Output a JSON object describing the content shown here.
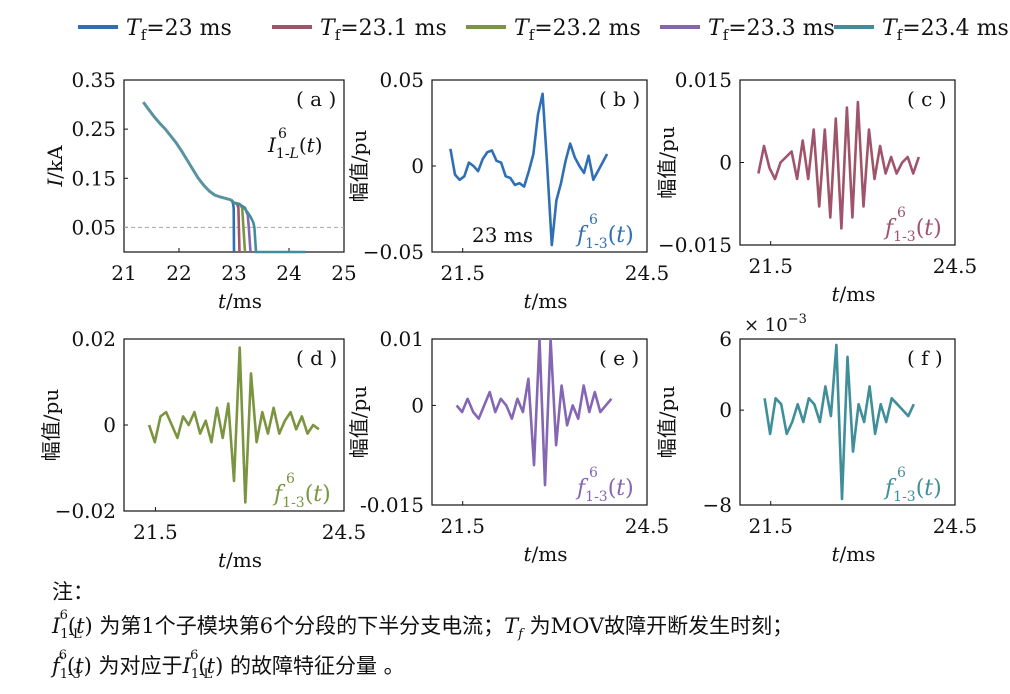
{
  "legend": [
    {
      "label": "Tf=23 ms",
      "color": "#2f6fb5"
    },
    {
      "label": "Tf=23.1 ms",
      "color": "#a0546b"
    },
    {
      "label": "Tf=23.2 ms",
      "color": "#7b9440"
    },
    {
      "label": "Tf=23.3 ms",
      "color": "#8466b3"
    },
    {
      "label": "Tf=23.4 ms",
      "color": "#3f8e99"
    }
  ],
  "chart_data": [
    {
      "id": "a",
      "type": "line",
      "panel_label": "( a )",
      "curve_label": "I^6_{1-L}(t)",
      "xlabel": "t/ms",
      "ylabel": "I/kA",
      "xlim": [
        21,
        25
      ],
      "ylim": [
        0,
        0.35
      ],
      "xticks": [
        21,
        22,
        23,
        24,
        25
      ],
      "xtick_labels": [
        "21",
        "22",
        "23",
        "24",
        "25"
      ],
      "yticks": [
        0.05,
        0.15,
        0.25,
        0.35
      ],
      "ytick_labels": [
        "0.05",
        "0.15",
        "0.25",
        "0.35"
      ],
      "reference_line": 0.05,
      "common_x": [
        21.35,
        21.45,
        21.55,
        21.65,
        21.75,
        21.85,
        21.95,
        22.05,
        22.15,
        22.25,
        22.35,
        22.45,
        22.55,
        22.65,
        22.75,
        22.85,
        22.95
      ],
      "common_y": [
        0.305,
        0.29,
        0.275,
        0.262,
        0.25,
        0.236,
        0.222,
        0.205,
        0.187,
        0.168,
        0.15,
        0.136,
        0.124,
        0.116,
        0.112,
        0.109,
        0.106
      ],
      "series": [
        {
          "tf": 23.0,
          "x": [
            22.98,
            22.995
          ],
          "y": [
            0.1,
            0.09
          ]
        },
        {
          "tf": 23.1,
          "x": [
            23.0,
            23.05,
            23.08,
            23.09
          ],
          "y": [
            0.1,
            0.099,
            0.09,
            0.05
          ]
        },
        {
          "tf": 23.2,
          "x": [
            23.0,
            23.1,
            23.15,
            23.17
          ],
          "y": [
            0.1,
            0.098,
            0.09,
            0.05
          ]
        },
        {
          "tf": 23.3,
          "x": [
            23.0,
            23.1,
            23.2,
            23.25,
            23.27
          ],
          "y": [
            0.1,
            0.097,
            0.09,
            0.075,
            0.05
          ]
        },
        {
          "tf": 23.4,
          "x": [
            23.0,
            23.1,
            23.2,
            23.3,
            23.35,
            23.37
          ],
          "y": [
            0.1,
            0.097,
            0.088,
            0.072,
            0.06,
            0.05
          ]
        }
      ]
    },
    {
      "id": "b",
      "type": "line",
      "panel_label": "( b )",
      "curve_label": "f^6_{1-3}(t)",
      "annotation": "23 ms",
      "xlabel": "t/ms",
      "ylabel": "幅值/pu",
      "xlim": [
        21.0,
        24.5
      ],
      "ylim": [
        -0.05,
        0.05
      ],
      "xticks": [
        21.5,
        24.5
      ],
      "xtick_labels": [
        "21.5",
        "24.5"
      ],
      "yticks": [
        -0.05,
        0,
        0.05
      ],
      "ytick_labels": [
        "−0.05",
        "0",
        "0.05"
      ],
      "x_start": 21.3,
      "x_step": 0.075,
      "values": [
        0.01,
        -0.005,
        -0.008,
        -0.006,
        0.002,
        0.0,
        -0.003,
        0.004,
        0.008,
        0.009,
        0.003,
        0.002,
        -0.006,
        -0.007,
        -0.011,
        -0.01,
        -0.012,
        -0.003,
        0.007,
        0.03,
        0.042,
        0.0,
        -0.046,
        -0.02,
        -0.01,
        0.003,
        0.013,
        0.005,
        0.0,
        -0.004,
        0.006,
        -0.008,
        -0.003,
        0.002,
        0.007
      ]
    },
    {
      "id": "c",
      "type": "line",
      "panel_label": "( c )",
      "curve_label": "f^6_{1-3}(t)",
      "xlabel": "t/ms",
      "ylabel": "幅值/pu",
      "xlim": [
        21.0,
        24.5
      ],
      "ylim": [
        -0.015,
        0.015
      ],
      "xticks": [
        21.5,
        24.5
      ],
      "xtick_labels": [
        "21.5",
        "24.5"
      ],
      "yticks": [
        -0.015,
        0,
        0.015
      ],
      "ytick_labels": [
        "−0.015",
        "0",
        "0.015"
      ],
      "x_start": 21.3,
      "x_step": 0.09,
      "values": [
        -0.002,
        0.003,
        -0.001,
        -0.003,
        0.0,
        0.001,
        0.002,
        -0.003,
        0.004,
        -0.003,
        0.006,
        -0.008,
        0.006,
        -0.01,
        0.008,
        -0.012,
        0.01,
        -0.01,
        0.011,
        -0.008,
        0.006,
        -0.003,
        0.003,
        -0.002,
        0.001,
        -0.002,
        0.0,
        0.001,
        -0.002,
        0.001
      ]
    },
    {
      "id": "d",
      "type": "line",
      "panel_label": "( d )",
      "curve_label": "f^6_{1-3}(t)",
      "xlabel": "t/ms",
      "ylabel": "幅值/pu",
      "xlim": [
        21.0,
        24.5
      ],
      "ylim": [
        -0.02,
        0.02
      ],
      "xticks": [
        21.5,
        24.5
      ],
      "xtick_labels": [
        "21.5",
        "24.5"
      ],
      "yticks": [
        -0.02,
        0,
        0.02
      ],
      "ytick_labels": [
        "−0.02",
        "0",
        "0.02"
      ],
      "x_start": 21.4,
      "x_step": 0.09,
      "values": [
        0.0,
        -0.004,
        0.002,
        0.003,
        0.0,
        -0.003,
        0.002,
        0.0,
        0.003,
        -0.002,
        0.001,
        -0.004,
        0.004,
        -0.003,
        0.005,
        -0.013,
        0.018,
        -0.018,
        0.012,
        -0.004,
        0.003,
        -0.002,
        0.004,
        -0.002,
        0.001,
        0.003,
        -0.001,
        0.002,
        -0.002,
        0.0,
        -0.001
      ]
    },
    {
      "id": "e",
      "type": "line",
      "panel_label": "( e )",
      "curve_label": "f^6_{1-3}(t)",
      "xlabel": "t/ms",
      "ylabel": "幅值/pu",
      "xlim": [
        21.0,
        24.5
      ],
      "ylim": [
        -0.015,
        0.01
      ],
      "xticks": [
        21.5,
        24.5
      ],
      "xtick_labels": [
        "21.5",
        "24.5"
      ],
      "yticks": [
        -0.015,
        0,
        0.01
      ],
      "ytick_labels": [
        "-0.015",
        "0",
        "0.01"
      ],
      "x_start": 21.4,
      "x_step": 0.09,
      "values": [
        0.0,
        -0.001,
        0.001,
        -0.001,
        -0.002,
        0.0,
        0.002,
        -0.001,
        0.001,
        0.0,
        -0.002,
        0.001,
        -0.001,
        0.004,
        -0.009,
        0.01,
        -0.012,
        0.01,
        -0.006,
        0.003,
        -0.003,
        0.0,
        -0.002,
        0.003,
        -0.001,
        0.002,
        -0.001,
        0.0,
        0.001
      ]
    },
    {
      "id": "f",
      "type": "line",
      "panel_label": "( f )",
      "curve_label": "f^6_{1-3}(t)",
      "scale_label": "×10^{-3}",
      "xlabel": "t/ms",
      "ylabel": "幅值/pu",
      "xlim": [
        21.0,
        24.5
      ],
      "ylim": [
        -8,
        6
      ],
      "xticks": [
        21.5,
        24.5
      ],
      "xtick_labels": [
        "21.5",
        "24.5"
      ],
      "yticks": [
        -8,
        0,
        6
      ],
      "ytick_labels": [
        "−8",
        "0",
        "6"
      ],
      "x_start": 21.4,
      "x_step": 0.09,
      "values": [
        1.0,
        -2.0,
        1.0,
        0.5,
        -2.0,
        -1.0,
        0.5,
        -1.0,
        1.0,
        0.5,
        -1.0,
        2.0,
        -0.5,
        5.5,
        -7.5,
        4.5,
        -3.5,
        0.5,
        -1.0,
        2.0,
        -2.0,
        0.5,
        -1.0,
        1.0,
        0.5,
        0.0,
        -0.5,
        0.5
      ]
    }
  ],
  "note": {
    "title": "注：",
    "line1": [
      "I^6_{1-L}(t)",
      " 为第1个子模块第6个分段的下半分支电流；",
      "T_f",
      " 为MOV故障开断发生时刻；"
    ],
    "line2": [
      "f^6_{1-3}(t)",
      " 为对应于",
      "I^6_{1-L}(t)",
      " 的故障特征分量 。"
    ]
  }
}
